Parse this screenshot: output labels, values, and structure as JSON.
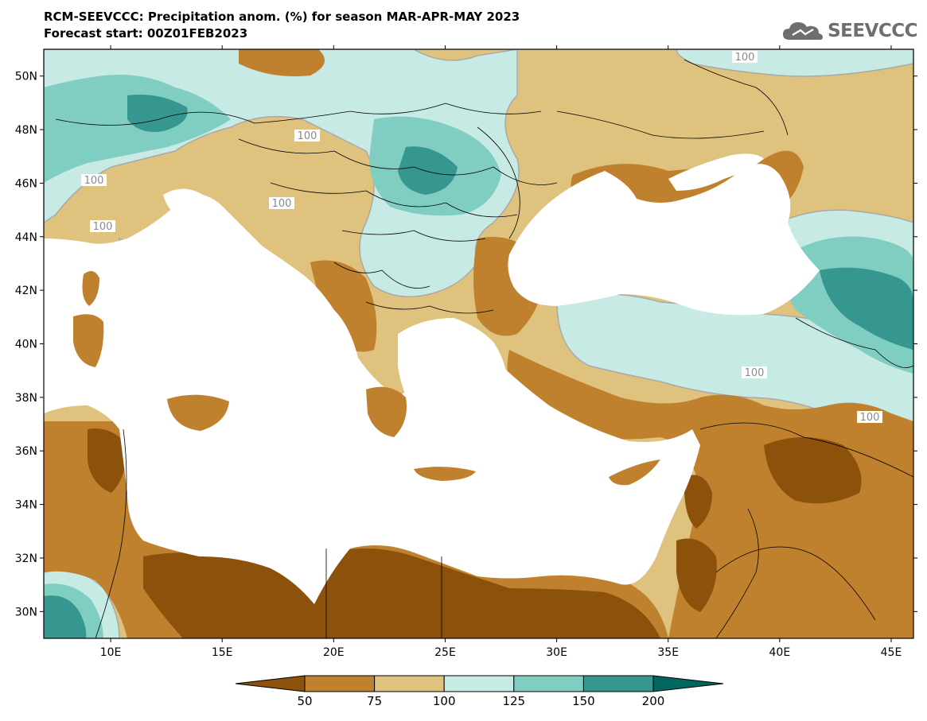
{
  "header": {
    "title_line1": "RCM-SEEVCCC: Precipitation anom. (%) for season MAR-APR-MAY 2023",
    "title_line2": "Forecast start: 00Z01FEB2023",
    "logo_text": "SEEVCCC"
  },
  "map": {
    "lon_range": [
      7,
      46
    ],
    "lat_range": [
      29,
      51
    ],
    "lon_ticks": [
      "10E",
      "15E",
      "20E",
      "25E",
      "30E",
      "35E",
      "40E",
      "45E"
    ],
    "lat_ticks": [
      "50N",
      "48N",
      "46N",
      "44N",
      "42N",
      "40N",
      "38N",
      "36N",
      "34N",
      "32N",
      "30N"
    ],
    "contour_label": "100"
  },
  "colorbar": {
    "labels": [
      "50",
      "75",
      "100",
      "125",
      "150",
      "200"
    ],
    "colors": {
      "below_50": "#8c510a",
      "50_75": "#bf812d",
      "75_100": "#dfc27d",
      "100_125": "#c7eae5",
      "125_150": "#80cdc1",
      "150_200": "#35978f",
      "above_200": "#01665e"
    }
  }
}
